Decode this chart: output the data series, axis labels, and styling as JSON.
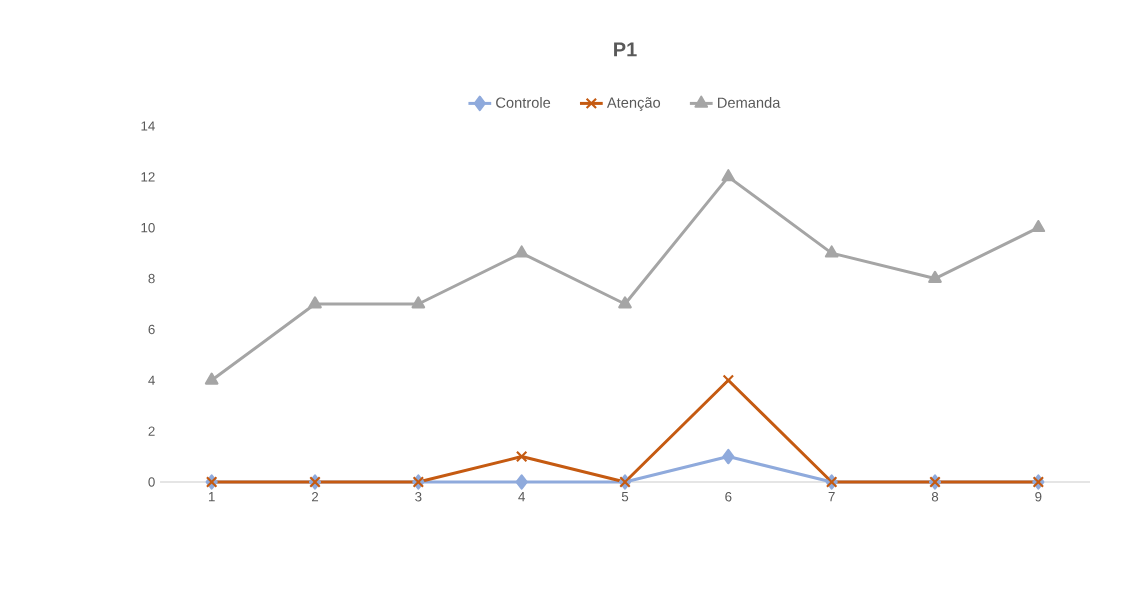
{
  "chart_data": {
    "type": "line",
    "title": "P1",
    "categories": [
      "1",
      "2",
      "3",
      "4",
      "5",
      "6",
      "7",
      "8",
      "9"
    ],
    "series": [
      {
        "name": "Controle",
        "color": "#8faadc",
        "marker": "diamond",
        "values": [
          0,
          0,
          0,
          0,
          0,
          1,
          0,
          0,
          0
        ]
      },
      {
        "name": "Atenção",
        "color": "#c55a11",
        "marker": "cross",
        "values": [
          0,
          0,
          0,
          1,
          0,
          4,
          0,
          0,
          0
        ]
      },
      {
        "name": "Demanda",
        "color": "#a5a5a5",
        "marker": "triangle",
        "values": [
          4,
          7,
          7,
          9,
          7,
          12,
          9,
          8,
          10
        ]
      }
    ],
    "ylim": [
      0,
      14
    ],
    "yticks": [
      0,
      2,
      4,
      6,
      8,
      10,
      12,
      14
    ],
    "legend": "top",
    "grid": false
  }
}
